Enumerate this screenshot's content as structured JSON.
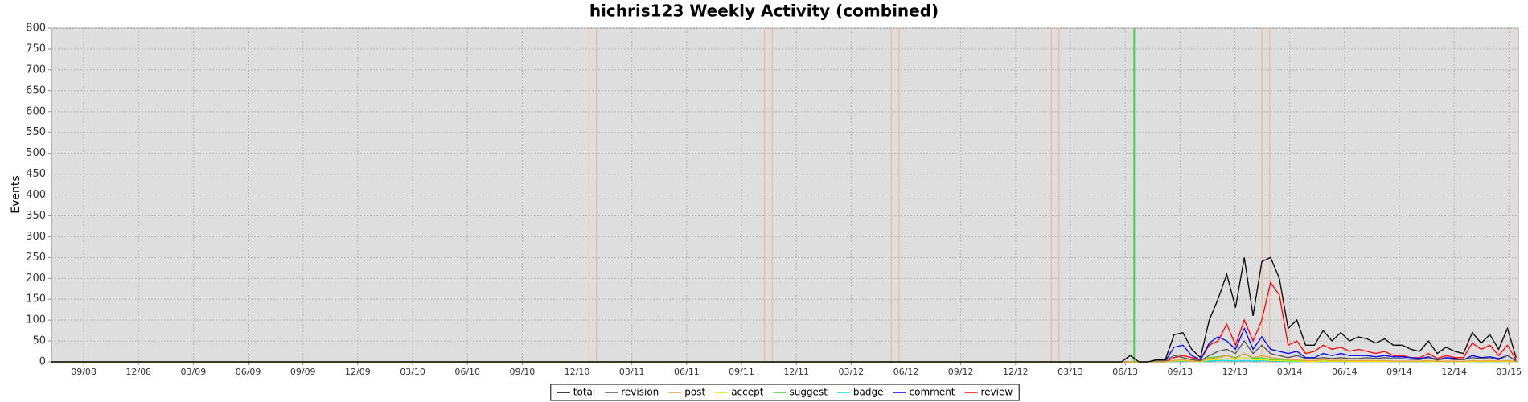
{
  "chart_data": {
    "type": "line",
    "title": "hichris123 Weekly Activity (combined)",
    "y_label": "Events",
    "xlim": [
      2008.52,
      2015.21
    ],
    "ylim": [
      0,
      800
    ],
    "xticks": [
      {
        "value": 2008.667,
        "label": "09/08"
      },
      {
        "value": 2008.917,
        "label": "12/08"
      },
      {
        "value": 2009.167,
        "label": "03/09"
      },
      {
        "value": 2009.417,
        "label": "06/09"
      },
      {
        "value": 2009.667,
        "label": "09/09"
      },
      {
        "value": 2009.917,
        "label": "12/09"
      },
      {
        "value": 2010.167,
        "label": "03/10"
      },
      {
        "value": 2010.417,
        "label": "06/10"
      },
      {
        "value": 2010.667,
        "label": "09/10"
      },
      {
        "value": 2010.917,
        "label": "12/10"
      },
      {
        "value": 2011.167,
        "label": "03/11"
      },
      {
        "value": 2011.417,
        "label": "06/11"
      },
      {
        "value": 2011.667,
        "label": "09/11"
      },
      {
        "value": 2011.917,
        "label": "12/11"
      },
      {
        "value": 2012.167,
        "label": "03/12"
      },
      {
        "value": 2012.417,
        "label": "06/12"
      },
      {
        "value": 2012.667,
        "label": "09/12"
      },
      {
        "value": 2012.917,
        "label": "12/12"
      },
      {
        "value": 2013.167,
        "label": "03/13"
      },
      {
        "value": 2013.417,
        "label": "06/13"
      },
      {
        "value": 2013.667,
        "label": "09/13"
      },
      {
        "value": 2013.917,
        "label": "12/13"
      },
      {
        "value": 2014.167,
        "label": "03/14"
      },
      {
        "value": 2014.417,
        "label": "06/14"
      },
      {
        "value": 2014.667,
        "label": "09/14"
      },
      {
        "value": 2014.917,
        "label": "12/14"
      },
      {
        "value": 2015.167,
        "label": "03/15"
      }
    ],
    "yticks": [
      0,
      50,
      100,
      150,
      200,
      250,
      300,
      350,
      400,
      450,
      500,
      550,
      600,
      650,
      700,
      750,
      800
    ],
    "grid": true,
    "event_lines": [
      {
        "x": 2010.971,
        "color": "#f4b183"
      },
      {
        "x": 2011.006,
        "color": "#f4b183"
      },
      {
        "x": 2011.772,
        "color": "#f4b183"
      },
      {
        "x": 2011.807,
        "color": "#f4b183"
      },
      {
        "x": 2012.35,
        "color": "#f4b183"
      },
      {
        "x": 2012.386,
        "color": "#f4b183"
      },
      {
        "x": 2013.08,
        "color": "#f4b183"
      },
      {
        "x": 2013.115,
        "color": "#f4b183"
      },
      {
        "x": 2013.458,
        "color": "#33dd33"
      },
      {
        "x": 2014.04,
        "color": "#f4b183"
      },
      {
        "x": 2014.076,
        "color": "#f4b183"
      },
      {
        "x": 2015.19,
        "color": "#f4b183"
      }
    ],
    "x": [
      2008.52,
      2013.4,
      2013.44,
      2013.48,
      2013.52,
      2013.56,
      2013.6,
      2013.64,
      2013.68,
      2013.72,
      2013.76,
      2013.8,
      2013.84,
      2013.88,
      2013.92,
      2013.96,
      2014.0,
      2014.04,
      2014.08,
      2014.12,
      2014.16,
      2014.2,
      2014.24,
      2014.28,
      2014.32,
      2014.36,
      2014.4,
      2014.44,
      2014.48,
      2014.52,
      2014.56,
      2014.6,
      2014.64,
      2014.68,
      2014.72,
      2014.76,
      2014.8,
      2014.84,
      2014.88,
      2014.92,
      2014.96,
      2015.0,
      2015.04,
      2015.08,
      2015.12,
      2015.16,
      2015.2
    ],
    "series": [
      {
        "name": "total",
        "color": "#000000",
        "values": [
          0,
          0,
          15,
          0,
          0,
          5,
          5,
          65,
          70,
          30,
          10,
          100,
          150,
          210,
          130,
          250,
          110,
          240,
          250,
          200,
          80,
          100,
          40,
          40,
          75,
          50,
          70,
          50,
          60,
          55,
          45,
          55,
          40,
          40,
          30,
          25,
          50,
          20,
          35,
          25,
          20,
          70,
          45,
          65,
          30,
          80,
          10
        ]
      },
      {
        "name": "revision",
        "color": "#555555",
        "values": [
          0,
          0,
          15,
          0,
          0,
          3,
          3,
          15,
          10,
          5,
          3,
          15,
          25,
          30,
          20,
          50,
          20,
          40,
          20,
          15,
          10,
          15,
          8,
          8,
          10,
          8,
          10,
          8,
          8,
          10,
          8,
          10,
          8,
          8,
          6,
          5,
          10,
          4,
          8,
          5,
          5,
          10,
          8,
          10,
          5,
          15,
          2
        ]
      },
      {
        "name": "post",
        "color": "#f0a040",
        "values": [
          0,
          0,
          0,
          0,
          0,
          0,
          0,
          3,
          5,
          2,
          1,
          8,
          10,
          15,
          8,
          20,
          10,
          15,
          10,
          8,
          5,
          5,
          3,
          3,
          5,
          3,
          4,
          3,
          3,
          3,
          3,
          3,
          2,
          2,
          2,
          2,
          3,
          1,
          2,
          2,
          1,
          3,
          2,
          3,
          2,
          3,
          1
        ]
      },
      {
        "name": "accept",
        "color": "#e6e600",
        "values": [
          0,
          0,
          0,
          0,
          0,
          0,
          0,
          2,
          3,
          1,
          0,
          5,
          5,
          8,
          5,
          10,
          5,
          5,
          3,
          3,
          2,
          2,
          1,
          1,
          2,
          1,
          2,
          1,
          1,
          1,
          1,
          1,
          1,
          1,
          1,
          1,
          1,
          0,
          1,
          1,
          0,
          1,
          1,
          1,
          1,
          1,
          0
        ]
      },
      {
        "name": "suggest",
        "color": "#33dd33",
        "values": [
          0,
          0,
          0,
          0,
          0,
          0,
          0,
          3,
          5,
          2,
          1,
          10,
          12,
          15,
          10,
          20,
          8,
          10,
          5,
          5,
          3,
          3,
          2,
          2,
          2,
          2,
          2,
          2,
          2,
          2,
          2,
          2,
          1,
          1,
          1,
          1,
          1,
          1,
          1,
          1,
          1,
          2,
          1,
          1,
          1,
          1,
          0
        ]
      },
      {
        "name": "badge",
        "color": "#00e5ee",
        "values": [
          0,
          0,
          0,
          0,
          0,
          0,
          0,
          1,
          2,
          1,
          0,
          2,
          3,
          3,
          2,
          3,
          2,
          3,
          2,
          2,
          1,
          1,
          1,
          1,
          1,
          1,
          1,
          1,
          1,
          1,
          1,
          1,
          1,
          1,
          1,
          1,
          1,
          0,
          1,
          1,
          0,
          1,
          1,
          1,
          1,
          1,
          0
        ]
      },
      {
        "name": "comment",
        "color": "#0000ff",
        "values": [
          0,
          0,
          0,
          0,
          0,
          2,
          2,
          35,
          40,
          15,
          5,
          45,
          60,
          50,
          30,
          80,
          30,
          60,
          30,
          25,
          20,
          25,
          10,
          10,
          20,
          15,
          20,
          15,
          15,
          15,
          12,
          15,
          12,
          12,
          10,
          8,
          12,
          5,
          10,
          8,
          5,
          15,
          10,
          12,
          8,
          15,
          3
        ]
      },
      {
        "name": "review",
        "color": "#ff0000",
        "values": [
          0,
          0,
          0,
          0,
          0,
          0,
          0,
          10,
          15,
          10,
          5,
          40,
          50,
          90,
          40,
          100,
          50,
          100,
          190,
          160,
          40,
          50,
          20,
          25,
          40,
          30,
          35,
          25,
          30,
          25,
          20,
          25,
          15,
          15,
          10,
          10,
          20,
          8,
          15,
          10,
          10,
          45,
          30,
          40,
          15,
          40,
          5
        ]
      }
    ]
  }
}
